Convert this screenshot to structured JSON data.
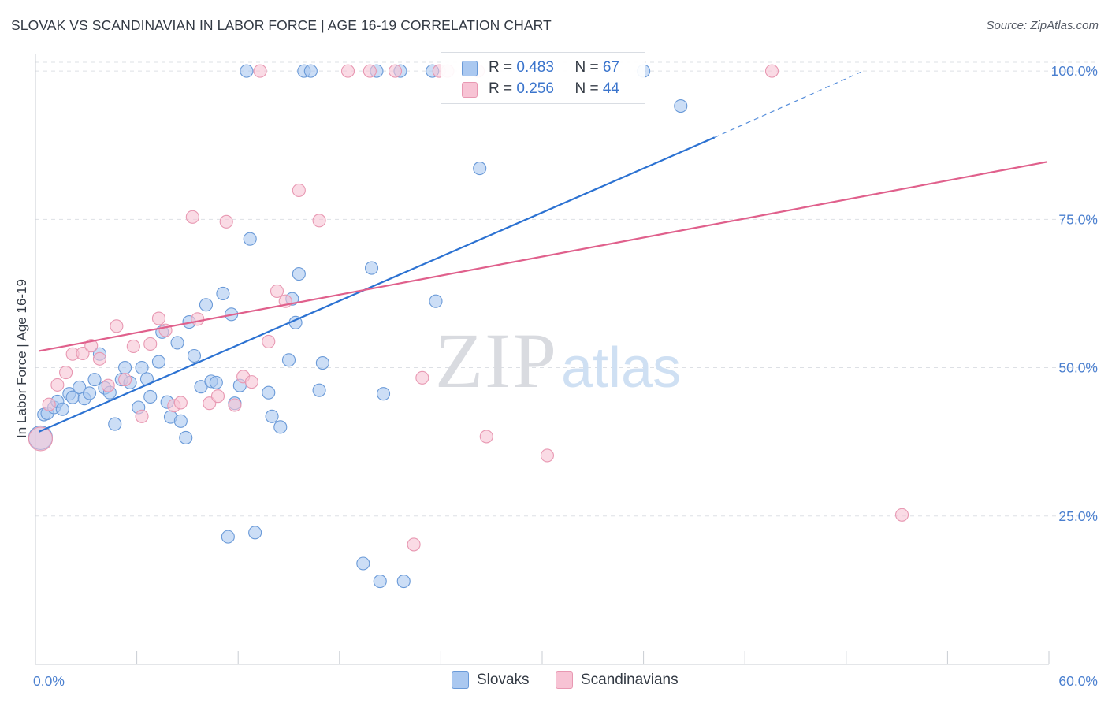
{
  "title": "SLOVAK VS SCANDINAVIAN IN LABOR FORCE | AGE 16-19 CORRELATION CHART",
  "source": "Source: ZipAtlas.com",
  "watermark": {
    "zip": "ZIP",
    "atlas": "atlas"
  },
  "colors": {
    "blue_fill": "#aac8f0",
    "blue_stroke": "#6a9ad8",
    "blue_line": "#2c72d2",
    "pink_fill": "#f7c3d4",
    "pink_stroke": "#e898b2",
    "pink_line": "#e0608c",
    "tick_text": "#4a7fcf",
    "grid": "#dde0e5"
  },
  "legend": {
    "rows": [
      {
        "r_label": "R = ",
        "r_value": "0.483",
        "n_label": "N = ",
        "n_value": "67"
      },
      {
        "r_label": "R = ",
        "r_value": "0.256",
        "n_label": "N = ",
        "n_value": "44"
      }
    ]
  },
  "bottom_legend": {
    "items": [
      "Slovaks",
      "Scandinavians"
    ]
  },
  "chart_data": {
    "type": "scatter",
    "title": "SLOVAK VS SCANDINAVIAN IN LABOR FORCE | AGE 16-19 CORRELATION CHART",
    "xlabel": "",
    "ylabel": "In Labor Force | Age 16-19",
    "xlim": [
      0,
      60
    ],
    "ylim": [
      0,
      104
    ],
    "x_tick_labels": [
      "0.0%",
      "60.0%"
    ],
    "y_ticks": [
      25,
      50,
      75,
      100
    ],
    "y_tick_labels": [
      "25.0%",
      "50.0%",
      "75.0%",
      "100.0%"
    ],
    "grid": "horizontal dashed",
    "legend_position": "top-center",
    "series": [
      {
        "name": "Slovaks",
        "r": 0.483,
        "n": 67,
        "trend": {
          "x": [
            0.2,
            40.2
          ],
          "y": [
            39.2,
            88.8
          ],
          "dashed_to": [
            49.0,
            100.0
          ]
        },
        "points": [
          [
            0.3,
            38.2
          ],
          [
            0.5,
            42.1
          ],
          [
            0.7,
            42.3
          ],
          [
            1.1,
            43.3
          ],
          [
            1.3,
            44.3
          ],
          [
            1.6,
            43.0
          ],
          [
            2.0,
            45.6
          ],
          [
            2.2,
            45.0
          ],
          [
            2.6,
            46.7
          ],
          [
            2.9,
            44.8
          ],
          [
            3.2,
            45.7
          ],
          [
            3.5,
            48.0
          ],
          [
            3.8,
            52.3
          ],
          [
            4.1,
            46.6
          ],
          [
            4.4,
            45.8
          ],
          [
            4.7,
            40.5
          ],
          [
            5.1,
            48.0
          ],
          [
            5.3,
            50.0
          ],
          [
            5.6,
            47.5
          ],
          [
            6.1,
            43.3
          ],
          [
            6.3,
            50.0
          ],
          [
            6.6,
            48.1
          ],
          [
            6.8,
            45.1
          ],
          [
            7.3,
            51.0
          ],
          [
            7.5,
            56.0
          ],
          [
            7.8,
            44.2
          ],
          [
            8.0,
            41.7
          ],
          [
            8.4,
            54.2
          ],
          [
            8.6,
            41.0
          ],
          [
            8.9,
            38.2
          ],
          [
            9.1,
            57.7
          ],
          [
            9.4,
            52.0
          ],
          [
            9.8,
            46.8
          ],
          [
            10.1,
            60.6
          ],
          [
            10.4,
            47.7
          ],
          [
            10.7,
            47.5
          ],
          [
            11.1,
            62.5
          ],
          [
            11.4,
            21.5
          ],
          [
            11.6,
            59.0
          ],
          [
            11.8,
            44.0
          ],
          [
            12.1,
            47.0
          ],
          [
            12.5,
            100.0
          ],
          [
            12.7,
            71.7
          ],
          [
            13.0,
            22.2
          ],
          [
            13.8,
            45.8
          ],
          [
            14.0,
            41.8
          ],
          [
            14.5,
            40.0
          ],
          [
            15.0,
            51.3
          ],
          [
            15.2,
            61.6
          ],
          [
            15.4,
            57.6
          ],
          [
            15.6,
            65.8
          ],
          [
            15.9,
            100.0
          ],
          [
            16.3,
            100.0
          ],
          [
            16.8,
            46.2
          ],
          [
            17.0,
            50.8
          ],
          [
            19.4,
            17.0
          ],
          [
            19.9,
            66.8
          ],
          [
            20.2,
            100.0
          ],
          [
            20.4,
            14.0
          ],
          [
            20.6,
            45.6
          ],
          [
            21.6,
            100.0
          ],
          [
            21.8,
            14.0
          ],
          [
            23.5,
            100.0
          ],
          [
            23.7,
            61.2
          ],
          [
            26.3,
            83.6
          ],
          [
            36.0,
            100.0
          ],
          [
            38.2,
            94.1
          ]
        ]
      },
      {
        "name": "Scandinavians",
        "r": 0.256,
        "n": 44,
        "trend": {
          "x": [
            0.2,
            59.9
          ],
          "y": [
            52.8,
            84.7
          ]
        },
        "points": [
          [
            0.3,
            38.0
          ],
          [
            0.8,
            43.8
          ],
          [
            1.3,
            47.1
          ],
          [
            1.8,
            49.2
          ],
          [
            2.2,
            52.3
          ],
          [
            2.8,
            52.4
          ],
          [
            3.3,
            53.7
          ],
          [
            3.8,
            51.5
          ],
          [
            4.3,
            47.0
          ],
          [
            4.8,
            57.0
          ],
          [
            5.3,
            48.0
          ],
          [
            5.8,
            53.6
          ],
          [
            6.3,
            41.8
          ],
          [
            6.8,
            54.0
          ],
          [
            7.3,
            58.3
          ],
          [
            7.7,
            56.3
          ],
          [
            8.2,
            43.6
          ],
          [
            8.6,
            44.1
          ],
          [
            9.3,
            75.4
          ],
          [
            9.6,
            58.2
          ],
          [
            10.3,
            44.0
          ],
          [
            10.8,
            45.2
          ],
          [
            11.3,
            74.6
          ],
          [
            11.8,
            43.7
          ],
          [
            12.3,
            48.5
          ],
          [
            12.8,
            47.6
          ],
          [
            13.3,
            100.0
          ],
          [
            13.8,
            54.4
          ],
          [
            14.3,
            62.9
          ],
          [
            14.8,
            61.2
          ],
          [
            15.6,
            79.9
          ],
          [
            16.8,
            74.8
          ],
          [
            18.5,
            100.0
          ],
          [
            19.8,
            100.0
          ],
          [
            21.3,
            100.0
          ],
          [
            22.4,
            20.2
          ],
          [
            22.9,
            48.3
          ],
          [
            23.9,
            100.0
          ],
          [
            24.4,
            100.0
          ],
          [
            26.2,
            100.0
          ],
          [
            26.7,
            38.4
          ],
          [
            30.3,
            35.2
          ],
          [
            43.6,
            100.0
          ],
          [
            51.3,
            25.2
          ]
        ]
      }
    ]
  }
}
